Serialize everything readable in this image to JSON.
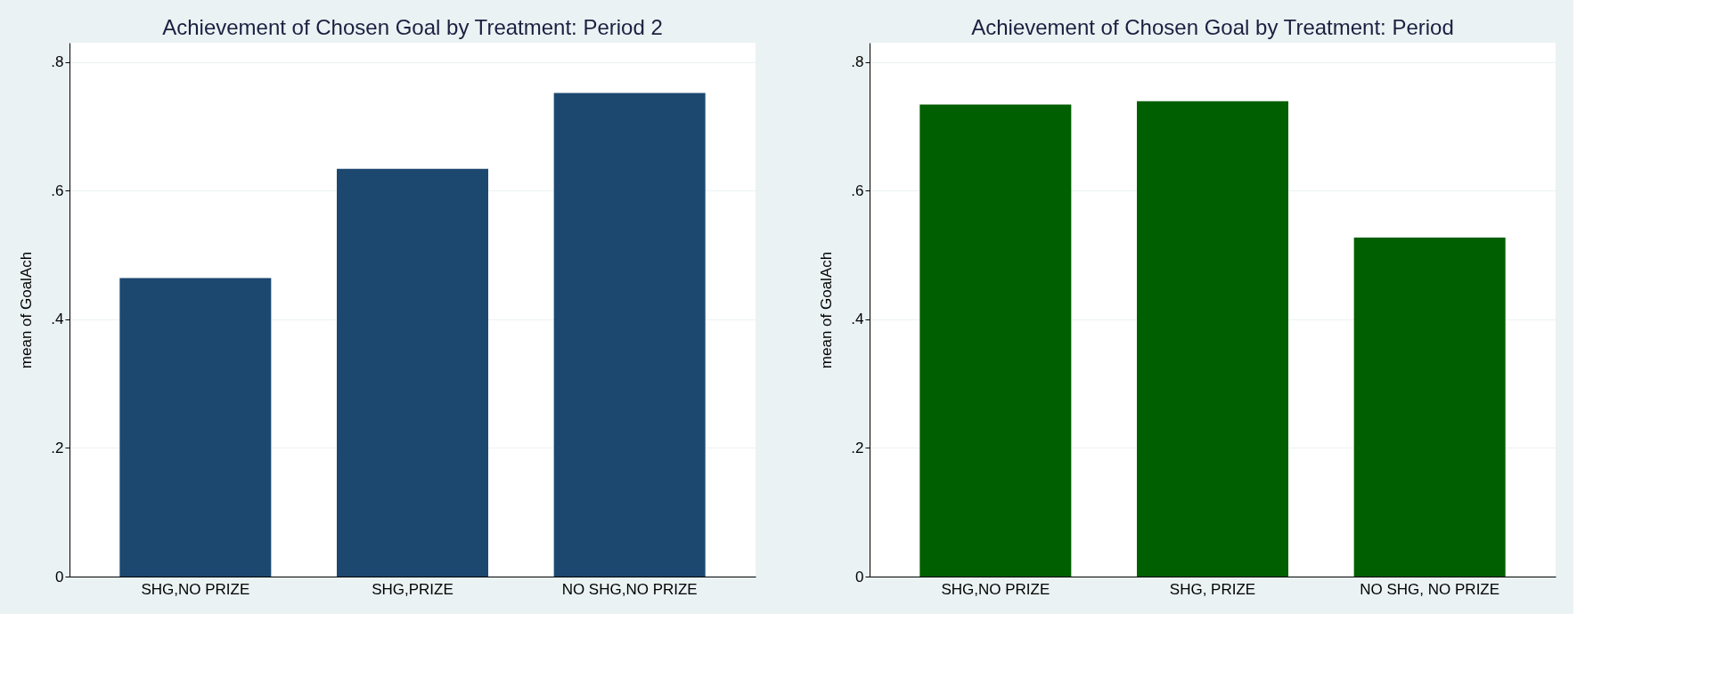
{
  "chart_data": [
    {
      "type": "bar",
      "title": "Achievement of Chosen Goal by Treatment: Period 2",
      "ylabel": "mean of GoalAch",
      "categories": [
        "SHG,NO PRIZE",
        "SHG,PRIZE",
        "NO SHG,NO PRIZE"
      ],
      "values": [
        0.464,
        0.634,
        0.752
      ],
      "color": "#1c4870",
      "ylim": [
        0,
        0.83
      ],
      "yticks": [
        {
          "value": 0,
          "label": "0"
        },
        {
          "value": 0.2,
          "label": ".2"
        },
        {
          "value": 0.4,
          "label": ".4"
        },
        {
          "value": 0.6,
          "label": ".6"
        },
        {
          "value": 0.8,
          "label": ".8"
        }
      ],
      "grid": "y"
    },
    {
      "type": "bar",
      "title": "Achievement of Chosen Goal by Treatment: Period",
      "ylabel": "mean of GoalAch",
      "categories": [
        "SHG,NO PRIZE",
        "SHG, PRIZE",
        "NO SHG, NO PRIZE"
      ],
      "values": [
        0.734,
        0.739,
        0.527
      ],
      "color": "#005f00",
      "ylim": [
        0,
        0.83
      ],
      "yticks": [
        {
          "value": 0,
          "label": "0"
        },
        {
          "value": 0.2,
          "label": ".2"
        },
        {
          "value": 0.4,
          "label": ".4"
        },
        {
          "value": 0.6,
          "label": ".6"
        },
        {
          "value": 0.8,
          "label": ".8"
        }
      ],
      "grid": "y"
    }
  ]
}
